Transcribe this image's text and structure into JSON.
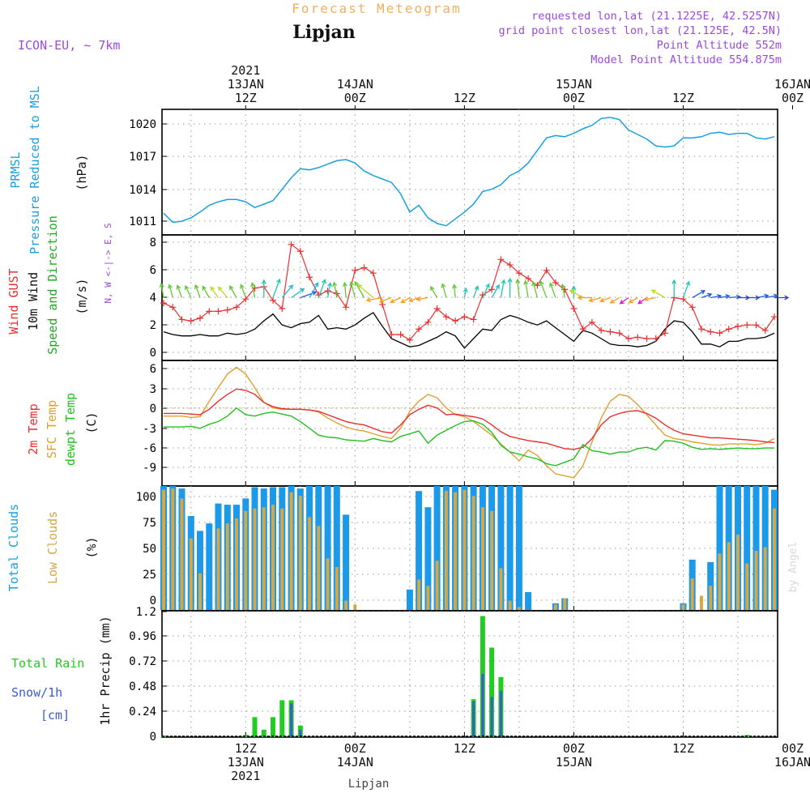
{
  "header": {
    "title": "Forecast Meteogram",
    "location": "Lipjan",
    "model": "ICON-EU, ~ 7km",
    "requested": "requested lon,lat (21.1225E, 42.5257N)",
    "grid_point": "grid point closest lon,lat (21.125E, 42.5N)",
    "point_altitude": "Point Altitude 552m",
    "model_altitude": "Model Point Altitude 554.875m",
    "credit": "by Angel",
    "footer_location": "Lipjan"
  },
  "time_axis": {
    "start_hour": 0,
    "end_hour": 67,
    "top_ticks": [
      {
        "hour": 9,
        "l1": "2021",
        "l2": "13JAN",
        "l3": "12Z"
      },
      {
        "hour": 21,
        "l1": "",
        "l2": "14JAN",
        "l3": "00Z"
      },
      {
        "hour": 33,
        "l1": "",
        "l2": "",
        "l3": "12Z"
      },
      {
        "hour": 45,
        "l1": "",
        "l2": "15JAN",
        "l3": "00Z"
      },
      {
        "hour": 57,
        "l1": "",
        "l2": "",
        "l3": "12Z"
      },
      {
        "hour": 69,
        "l1": "",
        "l2": "16JAN",
        "l3": "00Z"
      }
    ],
    "bottom_ticks": [
      {
        "hour": 9,
        "l1": "12Z",
        "l2": "13JAN",
        "l3": "2021"
      },
      {
        "hour": 21,
        "l1": "00Z",
        "l2": "14JAN",
        "l3": ""
      },
      {
        "hour": 33,
        "l1": "12Z",
        "l2": "",
        "l3": ""
      },
      {
        "hour": 45,
        "l1": "00Z",
        "l2": "15JAN",
        "l3": ""
      },
      {
        "hour": 57,
        "l1": "12Z",
        "l2": "",
        "l3": ""
      },
      {
        "hour": 69,
        "l1": "00Z",
        "l2": "16JAN",
        "l3": ""
      }
    ]
  },
  "colors": {
    "pressure": "#1aa0e0",
    "gust": "#e83030",
    "wind": "#000000",
    "direction_label": "#22aa22",
    "temp2m": "#e83030",
    "sfc_temp": "#e0a030",
    "dewpoint": "#22c022",
    "total_clouds": "#1a9ae8",
    "low_clouds": "#d4a848",
    "rain": "#22cc22",
    "snow": "#3a5ad8",
    "header_purple": "#9a4ad8",
    "title_orange": "#f0b060"
  },
  "chart_data": [
    {
      "id": "pressure",
      "type": "line",
      "label_lines": [
        "PRMSL",
        "Pressure Reduced to MSL",
        "(hPa)"
      ],
      "ylim": [
        1010,
        1021
      ],
      "yticks": [
        "1011",
        "1014",
        "1017",
        "1020"
      ],
      "x": [
        0,
        1,
        2,
        3,
        4,
        5,
        6,
        7,
        8,
        9,
        10,
        11,
        12,
        13,
        14,
        15,
        16,
        17,
        18,
        19,
        20,
        21,
        22,
        23,
        24,
        25,
        26,
        27,
        28,
        29,
        30,
        31,
        32,
        33,
        34,
        35,
        36,
        37,
        38,
        39,
        40,
        41,
        42,
        43,
        44,
        45,
        46,
        47,
        48,
        49,
        50,
        51,
        52,
        53,
        54,
        55,
        56,
        57,
        58,
        59,
        60,
        61,
        62,
        63,
        64,
        65,
        66,
        67
      ],
      "values": [
        1011.9,
        1011.1,
        1011.2,
        1011.5,
        1012.0,
        1012.6,
        1012.9,
        1013.1,
        1013.1,
        1012.9,
        1012.4,
        1012.7,
        1013.0,
        1014.0,
        1015.0,
        1015.8,
        1015.7,
        1015.9,
        1016.2,
        1016.5,
        1016.6,
        1016.3,
        1015.6,
        1015.2,
        1014.9,
        1014.6,
        1013.6,
        1012.0,
        1012.6,
        1011.5,
        1011.0,
        1010.8,
        1011.4,
        1012.0,
        1012.7,
        1013.8,
        1014.0,
        1014.4,
        1015.2,
        1015.6,
        1016.3,
        1017.4,
        1018.5,
        1018.7,
        1018.6,
        1018.9,
        1019.3,
        1019.6,
        1020.2,
        1020.3,
        1020.1,
        1019.2,
        1018.8,
        1018.4,
        1017.8,
        1017.7,
        1017.8,
        1018.5,
        1018.5,
        1018.6,
        1018.9,
        1019.0,
        1018.8,
        1018.9,
        1018.9,
        1018.5,
        1018.4,
        1018.6
      ]
    },
    {
      "id": "wind",
      "type": "line",
      "label_lines": [
        "Wind GUST",
        "10m Wind",
        "Speed and Direction",
        "(m/s)"
      ],
      "compass": "N, W <-|-> E, S",
      "ylim": [
        -0.6,
        8.6
      ],
      "yticks": [
        "0",
        "2",
        "4",
        "6",
        "8"
      ],
      "x": [
        0,
        1,
        2,
        3,
        4,
        5,
        6,
        7,
        8,
        9,
        10,
        11,
        12,
        13,
        14,
        15,
        16,
        17,
        18,
        19,
        20,
        21,
        22,
        23,
        24,
        25,
        26,
        27,
        28,
        29,
        30,
        31,
        32,
        33,
        34,
        35,
        36,
        37,
        38,
        39,
        40,
        41,
        42,
        43,
        44,
        45,
        46,
        47,
        48,
        49,
        50,
        51,
        52,
        53,
        54,
        55,
        56,
        57,
        58,
        59,
        60,
        61,
        62,
        63,
        64,
        65,
        66,
        67
      ],
      "gust": [
        3.6,
        3.3,
        2.4,
        2.3,
        2.5,
        3.0,
        3.0,
        3.1,
        3.3,
        3.9,
        4.7,
        4.8,
        3.8,
        3.2,
        7.9,
        7.4,
        5.5,
        4.2,
        4.5,
        4.3,
        3.3,
        6.0,
        6.2,
        5.8,
        3.5,
        1.3,
        1.3,
        0.9,
        1.7,
        2.2,
        3.2,
        2.6,
        2.3,
        2.6,
        2.4,
        4.2,
        4.6,
        6.8,
        6.4,
        5.8,
        5.4,
        4.9,
        6.0,
        5.1,
        4.6,
        3.2,
        1.7,
        2.2,
        1.6,
        1.5,
        1.4,
        1.0,
        1.1,
        1.0,
        1.0,
        1.4,
        4.0,
        3.9,
        3.3,
        1.7,
        1.5,
        1.4,
        1.7,
        1.9,
        2.0,
        2.0,
        1.6,
        2.6
      ],
      "wind": [
        1.5,
        1.3,
        1.2,
        1.2,
        1.3,
        1.2,
        1.2,
        1.4,
        1.3,
        1.4,
        1.7,
        2.3,
        2.8,
        2.0,
        1.8,
        2.1,
        2.2,
        2.7,
        1.7,
        1.8,
        1.7,
        2.0,
        2.5,
        2.9,
        1.9,
        1.0,
        0.7,
        0.4,
        0.5,
        0.8,
        1.1,
        1.5,
        1.2,
        0.3,
        1.0,
        1.7,
        1.6,
        2.4,
        2.7,
        2.5,
        2.2,
        2.0,
        2.3,
        1.8,
        1.3,
        0.8,
        1.6,
        1.4,
        1.0,
        0.6,
        0.5,
        0.5,
        0.4,
        0.5,
        0.8,
        1.7,
        2.3,
        2.2,
        1.5,
        0.6,
        0.6,
        0.4,
        0.8,
        0.8,
        1.0,
        1.0,
        1.1,
        1.4
      ],
      "arrow_hours": [
        0,
        1,
        2,
        3,
        4,
        5,
        6,
        7,
        8,
        9,
        10,
        11,
        12,
        13,
        14,
        15,
        16,
        17,
        18,
        19,
        20,
        21,
        22,
        23,
        24,
        25,
        26,
        27,
        28,
        29,
        30,
        31,
        32,
        33,
        34,
        35,
        36,
        37,
        38,
        39,
        40,
        41,
        42,
        43,
        44,
        45,
        46,
        47,
        48,
        49,
        50,
        51,
        52,
        53,
        54,
        55,
        56,
        57,
        58,
        59,
        60,
        61,
        62,
        63,
        64,
        65,
        66,
        67
      ],
      "arrow_dir_deg": [
        170,
        165,
        160,
        155,
        160,
        150,
        145,
        140,
        150,
        160,
        170,
        180,
        200,
        220,
        235,
        250,
        210,
        200,
        190,
        170,
        175,
        165,
        150,
        130,
        80,
        70,
        65,
        60,
        70,
        80,
        150,
        165,
        175,
        190,
        200,
        205,
        210,
        190,
        180,
        175,
        170,
        165,
        160,
        160,
        170,
        180,
        120,
        90,
        75,
        70,
        60,
        55,
        60,
        55,
        80,
        120,
        180,
        200,
        240,
        250,
        260,
        260,
        265,
        270,
        270,
        260,
        260,
        270
      ],
      "arrow_speed": [
        1.5,
        1.3,
        1.2,
        1.2,
        1.3,
        1.2,
        1.2,
        1.4,
        1.3,
        1.4,
        1.7,
        2.3,
        2.8,
        2.0,
        1.8,
        2.1,
        2.2,
        2.7,
        1.7,
        1.8,
        1.7,
        2.0,
        2.5,
        2.9,
        1.9,
        1.0,
        0.7,
        0.4,
        0.5,
        0.8,
        1.1,
        1.5,
        1.2,
        0.3,
        1.0,
        1.7,
        1.6,
        2.4,
        2.7,
        2.5,
        2.2,
        2.0,
        2.3,
        1.8,
        1.3,
        0.8,
        1.6,
        1.4,
        1.0,
        0.6,
        0.5,
        0.5,
        0.4,
        0.5,
        0.8,
        1.7,
        2.3,
        2.2,
        1.5,
        0.6,
        0.6,
        0.4,
        0.8,
        0.8,
        1.0,
        1.0,
        1.1,
        1.4
      ]
    },
    {
      "id": "temperature",
      "type": "line",
      "label_lines": [
        "2m Temp",
        "SFC Temp",
        "dewpt Temp",
        "(C)"
      ],
      "ylim": [
        -11.5,
        7
      ],
      "yticks": [
        "6",
        "3",
        "0",
        "-3",
        "-6",
        "-9"
      ],
      "x": [
        0,
        1,
        2,
        3,
        4,
        5,
        6,
        7,
        8,
        9,
        10,
        11,
        12,
        13,
        14,
        15,
        16,
        17,
        18,
        19,
        20,
        21,
        22,
        23,
        24,
        25,
        26,
        27,
        28,
        29,
        30,
        31,
        32,
        33,
        34,
        35,
        36,
        37,
        38,
        39,
        40,
        41,
        42,
        43,
        44,
        45,
        46,
        47,
        48,
        49,
        50,
        51,
        52,
        53,
        54,
        55,
        56,
        57,
        58,
        59,
        60,
        61,
        62,
        63,
        64,
        65,
        66,
        67
      ],
      "temp2m": [
        -0.8,
        -0.8,
        -0.8,
        -0.9,
        -1.0,
        -0.2,
        1.0,
        2.0,
        2.8,
        2.6,
        2.0,
        0.8,
        0.2,
        -0.1,
        -0.2,
        -0.2,
        -0.3,
        -0.5,
        -1.0,
        -1.5,
        -2.0,
        -2.3,
        -2.5,
        -3.0,
        -3.5,
        -3.7,
        -2.5,
        -1.0,
        -0.2,
        0.4,
        0.0,
        -1.0,
        -0.9,
        -1.1,
        -1.3,
        -1.6,
        -2.5,
        -3.5,
        -4.2,
        -4.5,
        -4.8,
        -5.0,
        -5.2,
        -5.6,
        -6.0,
        -6.1,
        -5.8,
        -4.5,
        -2.5,
        -1.3,
        -0.8,
        -0.5,
        -0.4,
        -0.8,
        -1.5,
        -2.5,
        -3.3,
        -3.8,
        -4.0,
        -4.2,
        -4.4,
        -4.4,
        -4.5,
        -4.6,
        -4.7,
        -4.8,
        -5.0,
        -5.1
      ],
      "sfc_temp": [
        -1.2,
        -1.2,
        -1.2,
        -1.4,
        -1.3,
        1.0,
        3.0,
        5.0,
        6.0,
        5.0,
        3.0,
        0.8,
        0.0,
        -0.2,
        -0.2,
        -0.2,
        -0.3,
        -0.6,
        -1.5,
        -2.2,
        -2.8,
        -3.2,
        -3.4,
        -3.8,
        -4.2,
        -4.5,
        -3.0,
        -0.5,
        1.0,
        2.0,
        1.5,
        0.0,
        -1.0,
        -1.3,
        -2.0,
        -3.0,
        -4.0,
        -5.3,
        -6.5,
        -7.8,
        -6.2,
        -7.0,
        -8.5,
        -9.7,
        -10.0,
        -10.3,
        -8.5,
        -5.0,
        -1.5,
        1.0,
        2.0,
        1.7,
        0.5,
        -1.0,
        -2.5,
        -4.0,
        -4.5,
        -4.7,
        -5.0,
        -5.2,
        -5.4,
        -5.5,
        -5.3,
        -5.3,
        -5.3,
        -5.4,
        -5.2,
        -4.5
      ],
      "dewpoint": [
        -2.8,
        -2.8,
        -2.8,
        -2.7,
        -3.0,
        -2.4,
        -2.0,
        -1.2,
        0.0,
        -1.0,
        -1.2,
        -0.8,
        -0.6,
        -0.9,
        -1.2,
        -2.0,
        -3.0,
        -4.0,
        -4.3,
        -4.4,
        -4.7,
        -4.8,
        -4.9,
        -4.5,
        -4.8,
        -5.0,
        -4.2,
        -3.8,
        -3.4,
        -5.2,
        -4.0,
        -3.3,
        -2.6,
        -2.0,
        -1.9,
        -2.4,
        -3.6,
        -5.5,
        -6.5,
        -6.8,
        -7.2,
        -7.5,
        -8.2,
        -8.5,
        -8.0,
        -7.5,
        -5.4,
        -6.3,
        -6.5,
        -6.8,
        -6.5,
        -6.5,
        -6.0,
        -5.8,
        -6.2,
        -4.8,
        -4.9,
        -5.2,
        -5.8,
        -6.1,
        -6.0,
        -6.1,
        -6.0,
        -5.9,
        -6.0,
        -6.0,
        -5.9,
        -5.9
      ]
    },
    {
      "id": "clouds",
      "type": "bar",
      "label_lines": [
        "Total Clouds",
        "Low Clouds",
        "(%)"
      ],
      "ylim": [
        0,
        100
      ],
      "yticks": [
        "100",
        "75",
        "50",
        "25",
        "0"
      ],
      "x": [
        0,
        1,
        2,
        3,
        4,
        5,
        6,
        7,
        8,
        9,
        10,
        11,
        12,
        13,
        14,
        15,
        16,
        17,
        18,
        19,
        20,
        21,
        22,
        23,
        24,
        25,
        26,
        27,
        28,
        29,
        30,
        31,
        32,
        33,
        34,
        35,
        36,
        37,
        38,
        39,
        40,
        41,
        42,
        43,
        44,
        45,
        46,
        47,
        48,
        49,
        50,
        51,
        52,
        53,
        54,
        55,
        56,
        57,
        58,
        59,
        60,
        61,
        62,
        63,
        64,
        65,
        66,
        67
      ],
      "total": [
        100,
        100,
        98,
        76,
        64,
        70,
        86,
        85,
        85,
        90,
        99,
        98,
        99,
        99,
        100,
        98,
        100,
        100,
        100,
        100,
        77,
        0,
        0,
        0,
        0,
        0,
        0,
        17,
        96,
        83,
        100,
        100,
        100,
        100,
        100,
        100,
        100,
        100,
        100,
        100,
        15,
        0,
        0,
        6,
        10,
        0,
        0,
        0,
        0,
        0,
        0,
        0,
        0,
        0,
        0,
        0,
        0,
        6,
        41,
        0,
        39,
        100,
        100,
        100,
        100,
        100,
        100,
        97
      ],
      "low": [
        97,
        98,
        90,
        58,
        30,
        0,
        66,
        70,
        74,
        80,
        82,
        83,
        85,
        82,
        95,
        92,
        75,
        68,
        42,
        35,
        8,
        5,
        0,
        0,
        0,
        0,
        0,
        0,
        25,
        20,
        40,
        96,
        95,
        97,
        92,
        83,
        80,
        34,
        8,
        3,
        0,
        0,
        0,
        5,
        10,
        0,
        0,
        0,
        0,
        0,
        0,
        0,
        0,
        0,
        0,
        0,
        0,
        5,
        26,
        12,
        20,
        46,
        55,
        61,
        38,
        48,
        51,
        82
      ]
    },
    {
      "id": "precip",
      "type": "bar",
      "label_lines": [
        "Total Rain",
        "Snow/1h",
        "[cm]",
        "1hr Precip (mm)"
      ],
      "ylim": [
        0,
        1.2
      ],
      "yticks": [
        "1.2",
        "0.96",
        "0.72",
        "0.48",
        "0.24",
        "0"
      ],
      "x": [
        0,
        1,
        2,
        3,
        4,
        5,
        6,
        7,
        8,
        9,
        10,
        11,
        12,
        13,
        14,
        15,
        16,
        17,
        18,
        19,
        20,
        21,
        22,
        23,
        24,
        25,
        26,
        27,
        28,
        29,
        30,
        31,
        32,
        33,
        34,
        35,
        36,
        37,
        38,
        39,
        40,
        41,
        42,
        43,
        44,
        45,
        46,
        47,
        48,
        49,
        50,
        51,
        52,
        53,
        54,
        55,
        56,
        57,
        58,
        59,
        60,
        61,
        62,
        63,
        64,
        65,
        66,
        67
      ],
      "rain": [
        0.01,
        0,
        0,
        0,
        0,
        0,
        0,
        0,
        0,
        0.02,
        0.19,
        0.07,
        0.19,
        0.35,
        0.35,
        0.11,
        0,
        0,
        0,
        0,
        0,
        0,
        0,
        0,
        0,
        0,
        0,
        0,
        0,
        0,
        0,
        0,
        0,
        0,
        0.36,
        1.15,
        0.85,
        0.57,
        0,
        0,
        0,
        0,
        0,
        0,
        0,
        0,
        0,
        0,
        0,
        0,
        0,
        0,
        0,
        0,
        0,
        0,
        0,
        0,
        0,
        0,
        0,
        0,
        0,
        0,
        0.02,
        0,
        0,
        0
      ],
      "snow": [
        0,
        0,
        0,
        0,
        0,
        0,
        0,
        0,
        0,
        0,
        0,
        0,
        0,
        0,
        0.32,
        0.07,
        0,
        0,
        0,
        0,
        0,
        0,
        0,
        0,
        0,
        0,
        0,
        0,
        0,
        0,
        0,
        0,
        0,
        0,
        0.34,
        0.6,
        0.38,
        0.44,
        0,
        0,
        0,
        0,
        0,
        0,
        0,
        0,
        0,
        0,
        0,
        0,
        0,
        0,
        0,
        0,
        0,
        0,
        0,
        0,
        0,
        0,
        0,
        0,
        0,
        0,
        0,
        0,
        0,
        0
      ]
    }
  ]
}
